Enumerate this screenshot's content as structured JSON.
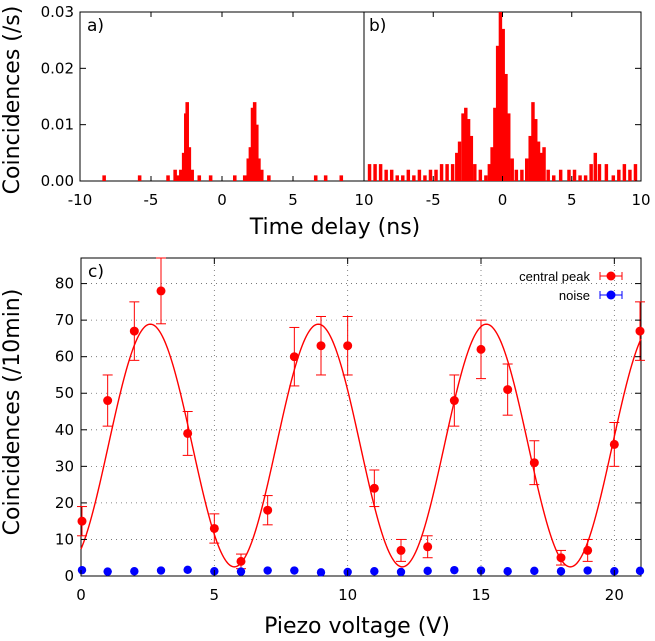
{
  "colors": {
    "red": "#ff0000",
    "blue": "#0000ff",
    "grid": "#000000"
  },
  "chart_data": [
    {
      "panel": "a)",
      "type": "bar",
      "xlabel": "Time delay (ns)",
      "ylabel": "Coincidences (/s)",
      "xlim": [
        -10,
        10
      ],
      "ylim": [
        0,
        0.03
      ],
      "xticks": [
        "-10",
        "-5",
        "0",
        "5"
      ],
      "yticks": [
        "0.00",
        "0.01",
        "0.02",
        "0.03"
      ],
      "bin_width_ns": 0.25,
      "bars": [
        [
          -8.3,
          0.001
        ],
        [
          -5.8,
          0.001
        ],
        [
          -3.8,
          0.001
        ],
        [
          -3.3,
          0.002
        ],
        [
          -3.1,
          0.001
        ],
        [
          -2.9,
          0.002
        ],
        [
          -2.7,
          0.005
        ],
        [
          -2.55,
          0.012
        ],
        [
          -2.45,
          0.014
        ],
        [
          -2.3,
          0.006
        ],
        [
          -2.1,
          0.002
        ],
        [
          -1.6,
          0.001
        ],
        [
          -0.8,
          0.001
        ],
        [
          0.9,
          0.001
        ],
        [
          1.6,
          0.001
        ],
        [
          1.85,
          0.004
        ],
        [
          2.0,
          0.006
        ],
        [
          2.15,
          0.013
        ],
        [
          2.3,
          0.014
        ],
        [
          2.45,
          0.01
        ],
        [
          2.6,
          0.004
        ],
        [
          2.8,
          0.002
        ],
        [
          3.3,
          0.001
        ],
        [
          6.6,
          0.001
        ],
        [
          7.3,
          0.001
        ],
        [
          8.4,
          0.001
        ]
      ]
    },
    {
      "panel": "b)",
      "type": "bar",
      "xlabel": "Time delay (ns)",
      "ylabel": "Coincidences (/s)",
      "xlim": [
        -10,
        10
      ],
      "ylim": [
        0,
        0.03
      ],
      "xticks": [
        "10",
        "-5",
        "0",
        "5",
        "10"
      ],
      "bin_width_ns": 0.25,
      "bars": [
        [
          -9.6,
          0.003
        ],
        [
          -9.2,
          0.003
        ],
        [
          -8.8,
          0.003
        ],
        [
          -8.4,
          0.002
        ],
        [
          -8.0,
          0.002
        ],
        [
          -7.6,
          0.001
        ],
        [
          -7.2,
          0.001
        ],
        [
          -6.8,
          0.002
        ],
        [
          -6.4,
          0.001
        ],
        [
          -6.0,
          0.002
        ],
        [
          -5.6,
          0.001
        ],
        [
          -5.2,
          0.002
        ],
        [
          -4.8,
          0.002
        ],
        [
          -4.4,
          0.003
        ],
        [
          -4.0,
          0.003
        ],
        [
          -3.6,
          0.003
        ],
        [
          -3.3,
          0.005
        ],
        [
          -3.1,
          0.007
        ],
        [
          -2.85,
          0.012
        ],
        [
          -2.65,
          0.013
        ],
        [
          -2.45,
          0.011
        ],
        [
          -2.25,
          0.008
        ],
        [
          -2.0,
          0.003
        ],
        [
          -1.6,
          0.002
        ],
        [
          -1.2,
          0.001
        ],
        [
          -0.95,
          0.003
        ],
        [
          -0.75,
          0.006
        ],
        [
          -0.55,
          0.013
        ],
        [
          -0.35,
          0.024
        ],
        [
          -0.15,
          0.03
        ],
        [
          0.05,
          0.027
        ],
        [
          0.25,
          0.019
        ],
        [
          0.45,
          0.012
        ],
        [
          0.7,
          0.004
        ],
        [
          1.0,
          0.002
        ],
        [
          1.4,
          0.002
        ],
        [
          1.75,
          0.004
        ],
        [
          2.0,
          0.008
        ],
        [
          2.2,
          0.014
        ],
        [
          2.4,
          0.011
        ],
        [
          2.6,
          0.007
        ],
        [
          2.8,
          0.005
        ],
        [
          3.0,
          0.006
        ],
        [
          3.3,
          0.002
        ],
        [
          3.7,
          0.001
        ],
        [
          4.2,
          0.002
        ],
        [
          4.8,
          0.002
        ],
        [
          5.2,
          0.002
        ],
        [
          5.6,
          0.001
        ],
        [
          6.0,
          0.001
        ],
        [
          6.4,
          0.003
        ],
        [
          6.7,
          0.005
        ],
        [
          7.0,
          0.003
        ],
        [
          7.5,
          0.003
        ],
        [
          8.0,
          0.001
        ],
        [
          8.4,
          0.002
        ],
        [
          8.8,
          0.003
        ],
        [
          9.2,
          0.002
        ],
        [
          9.6,
          0.003
        ]
      ]
    },
    {
      "panel": "c)",
      "type": "scatter",
      "xlabel": "Piezo voltage (V)",
      "ylabel": "Coincidences (/10min)",
      "xlim": [
        0,
        21
      ],
      "ylim": [
        0,
        87
      ],
      "xticks": [
        0,
        5,
        10,
        15,
        20
      ],
      "yticks": [
        0,
        10,
        20,
        30,
        40,
        50,
        60,
        70,
        80
      ],
      "grid": true,
      "legend_position": "top-right",
      "series": [
        {
          "name": "central peak",
          "x": [
            0,
            1,
            2,
            3,
            4,
            5,
            6,
            7,
            8,
            9,
            10,
            11,
            12,
            13,
            14,
            15,
            16,
            17,
            18,
            19,
            20,
            21
          ],
          "y": [
            15,
            48,
            67,
            78,
            39,
            13,
            4,
            18,
            60,
            63,
            63,
            24,
            7,
            8,
            48,
            62,
            51,
            31,
            5,
            7,
            36,
            67
          ],
          "err": [
            4,
            7,
            8,
            9,
            6,
            4,
            2,
            4,
            8,
            8,
            8,
            5,
            3,
            3,
            7,
            8,
            7,
            6,
            2,
            3,
            6,
            8
          ]
        },
        {
          "name": "noise",
          "x": [
            0,
            1,
            2,
            3,
            4,
            5,
            6,
            7,
            8,
            9,
            10,
            11,
            12,
            13,
            14,
            15,
            16,
            17,
            18,
            19,
            20,
            21
          ],
          "y": [
            1.6,
            1.2,
            1.3,
            1.5,
            1.7,
            1.3,
            1.2,
            1.5,
            1.5,
            1.0,
            1.1,
            1.3,
            1.1,
            1.4,
            1.6,
            1.5,
            1.3,
            1.4,
            1.3,
            1.5,
            1.3,
            1.4
          ]
        }
      ],
      "fit": {
        "offset": 35.7,
        "amplitude": 33.2,
        "period": 6.3,
        "peak_at": 2.6
      }
    }
  ]
}
